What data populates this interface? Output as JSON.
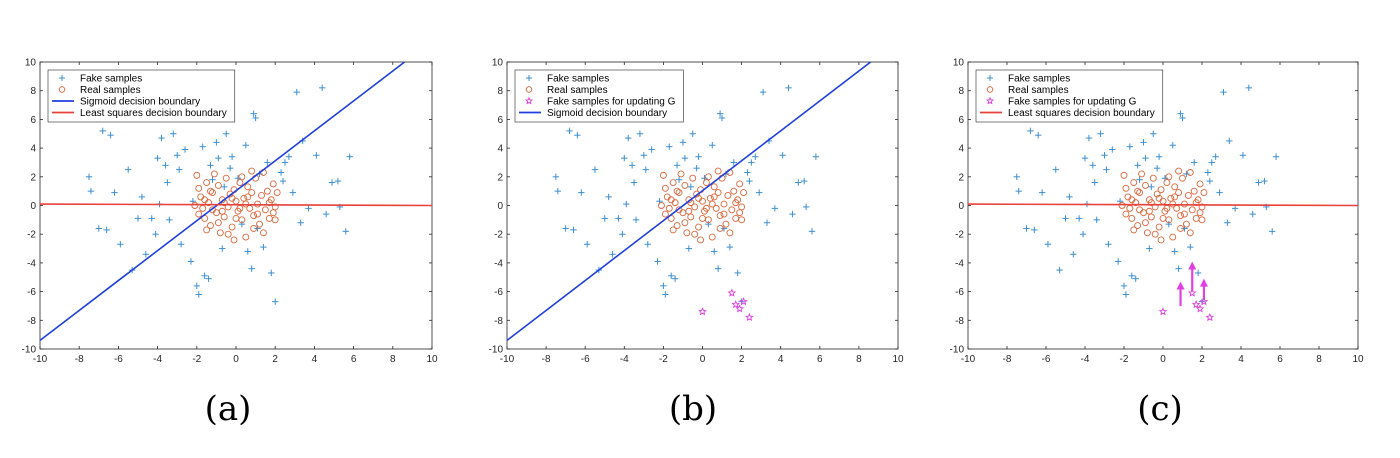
{
  "chart_data": [
    {
      "type": "scatter",
      "caption": "(a)",
      "xlim": [
        -10,
        10
      ],
      "ylim": [
        -10,
        10
      ],
      "xticks": [
        -10,
        -8,
        -6,
        -4,
        -2,
        0,
        2,
        4,
        6,
        8,
        10
      ],
      "yticks": [
        -10,
        -8,
        -6,
        -4,
        -2,
        0,
        2,
        4,
        6,
        8,
        10
      ],
      "grid": false,
      "legend_position": "top-left",
      "legend": [
        {
          "label": "Fake samples",
          "kind": "plus",
          "color": "#3d8fd1"
        },
        {
          "label": "Real samples",
          "kind": "circle",
          "color": "#d8673c"
        },
        {
          "label": "Sigmoid decision boundary",
          "kind": "line",
          "color": "#1f3fe0"
        },
        {
          "label": "Least squares decision boundary",
          "kind": "line",
          "color": "#e8403a"
        }
      ],
      "lines": [
        {
          "name": "Sigmoid decision boundary",
          "color": "#1f3fe0",
          "points": [
            [
              -10,
              -9.4
            ],
            [
              8.6,
              10
            ]
          ]
        },
        {
          "name": "Least squares decision boundary",
          "color": "#e8403a",
          "points": [
            [
              -10,
              0.1
            ],
            [
              10,
              0.0
            ]
          ]
        }
      ],
      "magenta_stars": [],
      "arrows": []
    },
    {
      "type": "scatter",
      "caption": "(b)",
      "xlim": [
        -10,
        10
      ],
      "ylim": [
        -10,
        10
      ],
      "xticks": [
        -10,
        -8,
        -6,
        -4,
        -2,
        0,
        2,
        4,
        6,
        8,
        10
      ],
      "yticks": [
        -10,
        -8,
        -6,
        -4,
        -2,
        0,
        2,
        4,
        6,
        8,
        10
      ],
      "grid": false,
      "legend_position": "top-left",
      "legend": [
        {
          "label": "Fake samples",
          "kind": "plus",
          "color": "#3d8fd1"
        },
        {
          "label": "Real samples",
          "kind": "circle",
          "color": "#d8673c"
        },
        {
          "label": "Fake samples for updating G",
          "kind": "star",
          "color": "#e040e0"
        },
        {
          "label": "Sigmoid decision boundary",
          "kind": "line",
          "color": "#1f3fe0"
        }
      ],
      "lines": [
        {
          "name": "Sigmoid decision boundary",
          "color": "#1f3fe0",
          "points": [
            [
              -10,
              -9.4
            ],
            [
              8.6,
              10
            ]
          ]
        }
      ],
      "magenta_stars": [
        [
          0.0,
          -7.4
        ],
        [
          1.5,
          -6.1
        ],
        [
          1.7,
          -6.9
        ],
        [
          1.9,
          -7.2
        ],
        [
          2.1,
          -6.7
        ],
        [
          2.4,
          -7.8
        ]
      ],
      "arrows": []
    },
    {
      "type": "scatter",
      "caption": "(c)",
      "xlim": [
        -10,
        10
      ],
      "ylim": [
        -10,
        10
      ],
      "xticks": [
        -10,
        -8,
        -6,
        -4,
        -2,
        0,
        2,
        4,
        6,
        8,
        10
      ],
      "yticks": [
        -10,
        -8,
        -6,
        -4,
        -2,
        0,
        2,
        4,
        6,
        8,
        10
      ],
      "grid": false,
      "legend_position": "top-left",
      "legend": [
        {
          "label": "Fake samples",
          "kind": "plus",
          "color": "#3d8fd1"
        },
        {
          "label": "Real samples",
          "kind": "circle",
          "color": "#d8673c"
        },
        {
          "label": "Fake samples for updating G",
          "kind": "star",
          "color": "#e040e0"
        },
        {
          "label": "Least squares decision boundary",
          "kind": "line",
          "color": "#e8403a"
        }
      ],
      "lines": [
        {
          "name": "Least squares decision boundary",
          "color": "#e8403a",
          "points": [
            [
              -10,
              0.1
            ],
            [
              10,
              0.0
            ]
          ]
        }
      ],
      "magenta_stars": [
        [
          0.0,
          -7.4
        ],
        [
          1.5,
          -6.1
        ],
        [
          1.7,
          -6.9
        ],
        [
          1.9,
          -7.2
        ],
        [
          2.1,
          -6.7
        ],
        [
          2.4,
          -7.8
        ]
      ],
      "arrows": [
        [
          0.9,
          -7.0,
          0.9,
          -5.3
        ],
        [
          1.5,
          -6.0,
          1.5,
          -3.9
        ],
        [
          2.1,
          -6.6,
          2.1,
          -5.1
        ]
      ]
    }
  ],
  "shared": {
    "fake_samples": [
      [
        -7.5,
        2.0
      ],
      [
        -7.4,
        1.0
      ],
      [
        -6.8,
        5.2
      ],
      [
        -6.4,
        4.9
      ],
      [
        -7.0,
        -1.6
      ],
      [
        -6.6,
        -1.7
      ],
      [
        -6.2,
        0.9
      ],
      [
        -5.9,
        -2.7
      ],
      [
        -5.5,
        2.5
      ],
      [
        -5.3,
        -4.5
      ],
      [
        -4.8,
        0.6
      ],
      [
        -4.6,
        -3.4
      ],
      [
        -4.3,
        -0.9
      ],
      [
        -4.0,
        3.3
      ],
      [
        -3.8,
        4.7
      ],
      [
        -3.9,
        0.1
      ],
      [
        -3.6,
        2.8
      ],
      [
        -3.5,
        1.6
      ],
      [
        -3.4,
        -1.0
      ],
      [
        -3.2,
        5.0
      ],
      [
        -3.0,
        3.5
      ],
      [
        -2.9,
        2.5
      ],
      [
        -2.8,
        -2.7
      ],
      [
        -2.6,
        3.9
      ],
      [
        -2.3,
        -3.9
      ],
      [
        -2.2,
        0.3
      ],
      [
        -2.0,
        -5.6
      ],
      [
        -1.9,
        -6.2
      ],
      [
        -1.7,
        4.1
      ],
      [
        -1.6,
        -4.9
      ],
      [
        -1.4,
        -5.1
      ],
      [
        -1.3,
        2.8
      ],
      [
        -1.2,
        1.8
      ],
      [
        -1.0,
        4.4
      ],
      [
        -0.9,
        3.3
      ],
      [
        -0.7,
        -3.0
      ],
      [
        -0.6,
        1.3
      ],
      [
        -0.5,
        5.0
      ],
      [
        -0.3,
        2.6
      ],
      [
        -0.2,
        3.4
      ],
      [
        0.1,
        1.9
      ],
      [
        0.3,
        -1.3
      ],
      [
        0.5,
        4.2
      ],
      [
        0.6,
        -3.2
      ],
      [
        0.8,
        -4.4
      ],
      [
        0.9,
        6.4
      ],
      [
        1.0,
        6.1
      ],
      [
        1.1,
        -1.6
      ],
      [
        1.2,
        2.2
      ],
      [
        1.4,
        -2.9
      ],
      [
        1.6,
        3.0
      ],
      [
        1.8,
        -4.7
      ],
      [
        2.0,
        -6.7
      ],
      [
        2.3,
        2.3
      ],
      [
        2.4,
        1.7
      ],
      [
        2.5,
        3.0
      ],
      [
        2.7,
        3.4
      ],
      [
        2.9,
        0.9
      ],
      [
        3.1,
        7.9
      ],
      [
        3.3,
        -1.2
      ],
      [
        3.4,
        4.5
      ],
      [
        3.7,
        -0.2
      ],
      [
        4.1,
        3.5
      ],
      [
        4.4,
        8.2
      ],
      [
        4.9,
        1.6
      ],
      [
        5.2,
        1.7
      ],
      [
        5.3,
        -0.1
      ],
      [
        5.6,
        -1.8
      ],
      [
        5.8,
        3.4
      ],
      [
        4.6,
        -0.6
      ],
      [
        -5.0,
        -0.9
      ],
      [
        -4.1,
        -2.0
      ]
    ],
    "real_samples": [
      [
        -2.0,
        2.1
      ],
      [
        -1.9,
        1.2
      ],
      [
        -1.8,
        0.6
      ],
      [
        -1.7,
        -0.2
      ],
      [
        -1.6,
        -0.9
      ],
      [
        -1.5,
        1.6
      ],
      [
        -1.4,
        0.2
      ],
      [
        -1.3,
        -1.4
      ],
      [
        -1.2,
        0.9
      ],
      [
        -1.1,
        2.2
      ],
      [
        -1.0,
        -0.5
      ],
      [
        -0.9,
        1.4
      ],
      [
        -0.8,
        -1.9
      ],
      [
        -0.7,
        0.4
      ],
      [
        -0.6,
        -0.8
      ],
      [
        -0.5,
        1.9
      ],
      [
        -0.4,
        -0.1
      ],
      [
        -0.3,
        0.8
      ],
      [
        -0.2,
        -1.5
      ],
      [
        -0.1,
        1.1
      ],
      [
        0.0,
        0.3
      ],
      [
        0.1,
        -0.4
      ],
      [
        0.2,
        1.6
      ],
      [
        0.3,
        -1.0
      ],
      [
        0.4,
        0.5
      ],
      [
        0.5,
        -2.2
      ],
      [
        0.6,
        1.3
      ],
      [
        0.7,
        -0.2
      ],
      [
        0.8,
        0.9
      ],
      [
        0.9,
        -0.7
      ],
      [
        1.0,
        1.9
      ],
      [
        1.1,
        0.1
      ],
      [
        1.2,
        -1.3
      ],
      [
        1.3,
        0.7
      ],
      [
        1.4,
        2.3
      ],
      [
        1.5,
        -0.3
      ],
      [
        1.6,
        1.0
      ],
      [
        1.7,
        -0.9
      ],
      [
        1.8,
        0.4
      ],
      [
        1.9,
        1.5
      ],
      [
        2.0,
        -0.1
      ],
      [
        2.1,
        0.9
      ],
      [
        -1.9,
        -0.6
      ],
      [
        -1.2,
        -0.3
      ],
      [
        -0.6,
        0.2
      ],
      [
        0.0,
        -0.9
      ],
      [
        0.5,
        0.1
      ],
      [
        1.1,
        -0.6
      ],
      [
        -0.4,
        -2.0
      ],
      [
        0.3,
        2.0
      ],
      [
        -1.6,
        0.4
      ],
      [
        1.7,
        0.2
      ],
      [
        -0.9,
        -1.2
      ],
      [
        0.9,
        -1.6
      ],
      [
        -0.2,
        0.5
      ],
      [
        0.2,
        -0.2
      ],
      [
        -1.3,
        1.0
      ],
      [
        1.4,
        -1.9
      ],
      [
        -0.7,
        -0.4
      ],
      [
        0.6,
        0.6
      ],
      [
        2.0,
        -1.0
      ],
      [
        -2.1,
        0.0
      ],
      [
        -0.1,
        -2.4
      ],
      [
        0.8,
        2.4
      ],
      [
        -1.5,
        -1.7
      ],
      [
        1.9,
        -0.5
      ]
    ]
  }
}
